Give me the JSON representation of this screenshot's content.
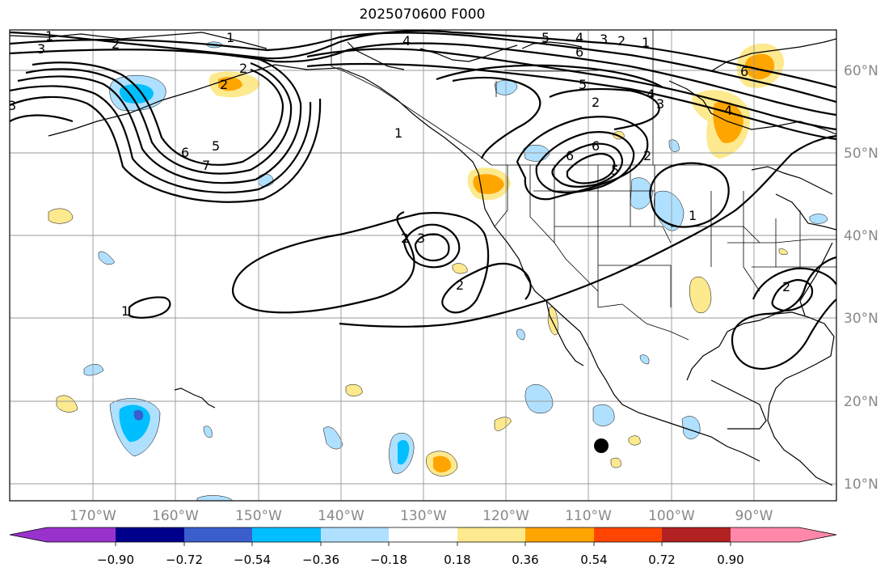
{
  "title": "2025070600 F000",
  "longitude_labels": [
    "170°W",
    "160°W",
    "150°W",
    "140°W",
    "130°W",
    "120°W",
    "110°W",
    "100°W",
    "90°W"
  ],
  "latitude_labels": [
    "60°N",
    "50°N",
    "40°N",
    "30°N",
    "20°N",
    "10°N"
  ],
  "contour_labels": [
    "1",
    "2",
    "3",
    "1",
    "4",
    "5",
    "4",
    "3",
    "2",
    "1",
    "6",
    "6",
    "5",
    "2",
    "2",
    "3",
    "6",
    "5",
    "7",
    "1",
    "2",
    "3",
    "6",
    "5",
    "4",
    "3",
    "2",
    "1",
    "2",
    "2",
    "1",
    "2",
    "6",
    "4"
  ],
  "colorbar": {
    "tick_labels": [
      "−0.90",
      "−0.72",
      "−0.54",
      "−0.36",
      "−0.18",
      "0.18",
      "0.36",
      "0.54",
      "0.72",
      "0.90"
    ],
    "colors": [
      "#9932cc",
      "#00008b",
      "#3a5fcd",
      "#00bfff",
      "#b0e0ff",
      "#ffffff",
      "#fde98e",
      "#ffa500",
      "#ff4500",
      "#b22222",
      "#ff88aa"
    ]
  },
  "colors": {
    "light_blue": "#b0e0ff",
    "blue": "#00bfff",
    "royal_blue": "#3a5fcd",
    "light_yellow": "#fde98e",
    "orange": "#ffa500"
  },
  "marker": "storm-center-dot"
}
